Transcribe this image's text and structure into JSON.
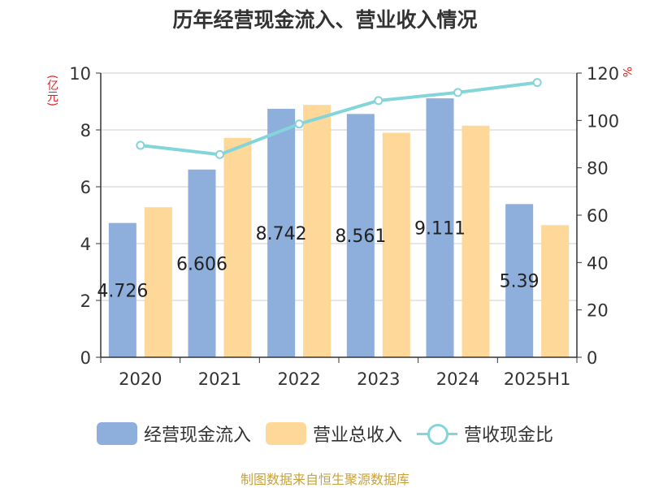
{
  "chart_data": {
    "type": "bar",
    "title": "历年经营现金流入、营业收入情况",
    "categories": [
      "2020",
      "2021",
      "2022",
      "2023",
      "2024",
      "2025H1"
    ],
    "ylabel": "(亿元)",
    "y2label": "%",
    "ylim": [
      0,
      10
    ],
    "y2lim": [
      0,
      120
    ],
    "yticks": [
      "0",
      "2",
      "4",
      "6",
      "8",
      "10"
    ],
    "y2ticks": [
      "0",
      "20",
      "40",
      "60",
      "80",
      "100",
      "120"
    ],
    "series": [
      {
        "name": "经营现金流入",
        "type": "bar",
        "axis": "left",
        "color": "#8eaedc",
        "values": [
          4.726,
          6.606,
          8.742,
          8.561,
          9.111,
          5.39
        ],
        "labels": [
          "4.726",
          "6.606",
          "8.742",
          "8.561",
          "9.111",
          "5.39"
        ]
      },
      {
        "name": "营业总收入",
        "type": "bar",
        "axis": "left",
        "color": "#fdd898",
        "values": [
          5.28,
          7.72,
          8.88,
          7.9,
          8.15,
          4.65
        ]
      },
      {
        "name": "营收现金比",
        "type": "line",
        "axis": "right",
        "color": "#84d5d9",
        "values": [
          89.5,
          85.6,
          98.5,
          108.4,
          111.8,
          116.0
        ]
      }
    ],
    "legend": "bottom",
    "grid": true
  },
  "source": "制图数据来自恒生聚源数据库"
}
